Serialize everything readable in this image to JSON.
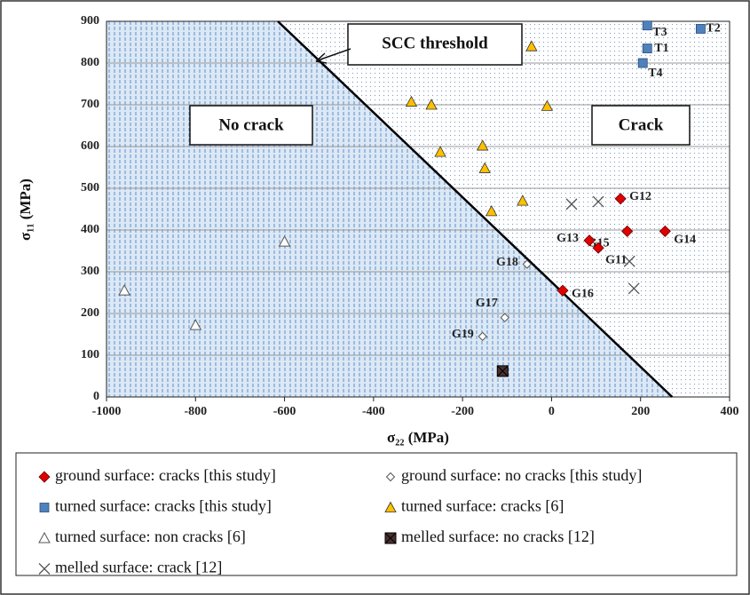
{
  "chart_data": {
    "type": "scatter",
    "x_label": "σ₂₂ (MPa)",
    "y_label": "σ₁₁ (MPa)",
    "xlim": [
      -1000,
      400
    ],
    "xticks": [
      -1000,
      -800,
      -600,
      -400,
      -200,
      0,
      200,
      400
    ],
    "ylim": [
      0,
      900
    ],
    "yticks": [
      0,
      100,
      200,
      300,
      400,
      500,
      600,
      700,
      800,
      900
    ],
    "grid": true,
    "threshold": {
      "name": "SCC threshold",
      "x": [
        -615,
        271
      ],
      "y": [
        900,
        0
      ]
    },
    "annotations": [
      "No crack",
      "Crack"
    ],
    "series": [
      {
        "name": "ground surface: cracks [this study]",
        "marker": "diamond",
        "color": "#e00000",
        "x": [
          155,
          255,
          170,
          85,
          105,
          25
        ],
        "values": [
          475,
          397,
          397,
          375,
          357,
          255
        ],
        "labels": [
          "G12",
          "G14",
          "G15",
          "G13",
          "G11",
          "G16"
        ]
      },
      {
        "name": "ground surface: no cracks [this study]",
        "marker": "open-diamond",
        "color": "#555555",
        "x": [
          -55,
          -105,
          -155
        ],
        "values": [
          318,
          190,
          145
        ],
        "labels": [
          "G18",
          "G17",
          "G19"
        ]
      },
      {
        "name": "turned surface: cracks [this study]",
        "marker": "square",
        "color": "#4f81bd",
        "x": [
          215,
          335,
          215,
          205
        ],
        "values": [
          890,
          882,
          835,
          800
        ],
        "labels": [
          "T3",
          "T2",
          "T1",
          "T4"
        ]
      },
      {
        "name": "turned surface: cracks [6]",
        "marker": "triangle",
        "color": "#ffc000",
        "x": [
          -45,
          -315,
          -270,
          -10,
          -155,
          -250,
          -150,
          -65,
          -135
        ],
        "values": [
          840,
          707,
          700,
          697,
          602,
          587,
          548,
          470,
          445
        ]
      },
      {
        "name": "turned surface: non cracks [6]",
        "marker": "open-triangle",
        "color": "#555555",
        "x": [
          -960,
          -600,
          -800
        ],
        "values": [
          255,
          372,
          172
        ]
      },
      {
        "name": "melled surface: no cracks [12]",
        "marker": "xsquare",
        "color": "#4a3030",
        "x": [
          -110
        ],
        "values": [
          62
        ]
      },
      {
        "name": "melled surface: crack [12]",
        "marker": "cross",
        "color": "#555555",
        "x": [
          45,
          105,
          175,
          185
        ],
        "values": [
          462,
          468,
          325,
          260
        ]
      }
    ]
  }
}
